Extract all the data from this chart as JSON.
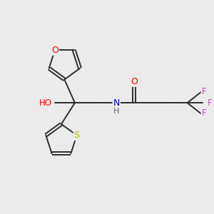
{
  "background_color": "#ebebeb",
  "bond_color": "#2d2d2d",
  "atom_colors": {
    "O": "#ff0000",
    "N": "#0000cc",
    "S": "#bbbb00",
    "F": "#cc44cc",
    "H": "#666666",
    "C": "#2d2d2d"
  },
  "figsize": [
    3.0,
    3.0
  ],
  "dpi": 100
}
